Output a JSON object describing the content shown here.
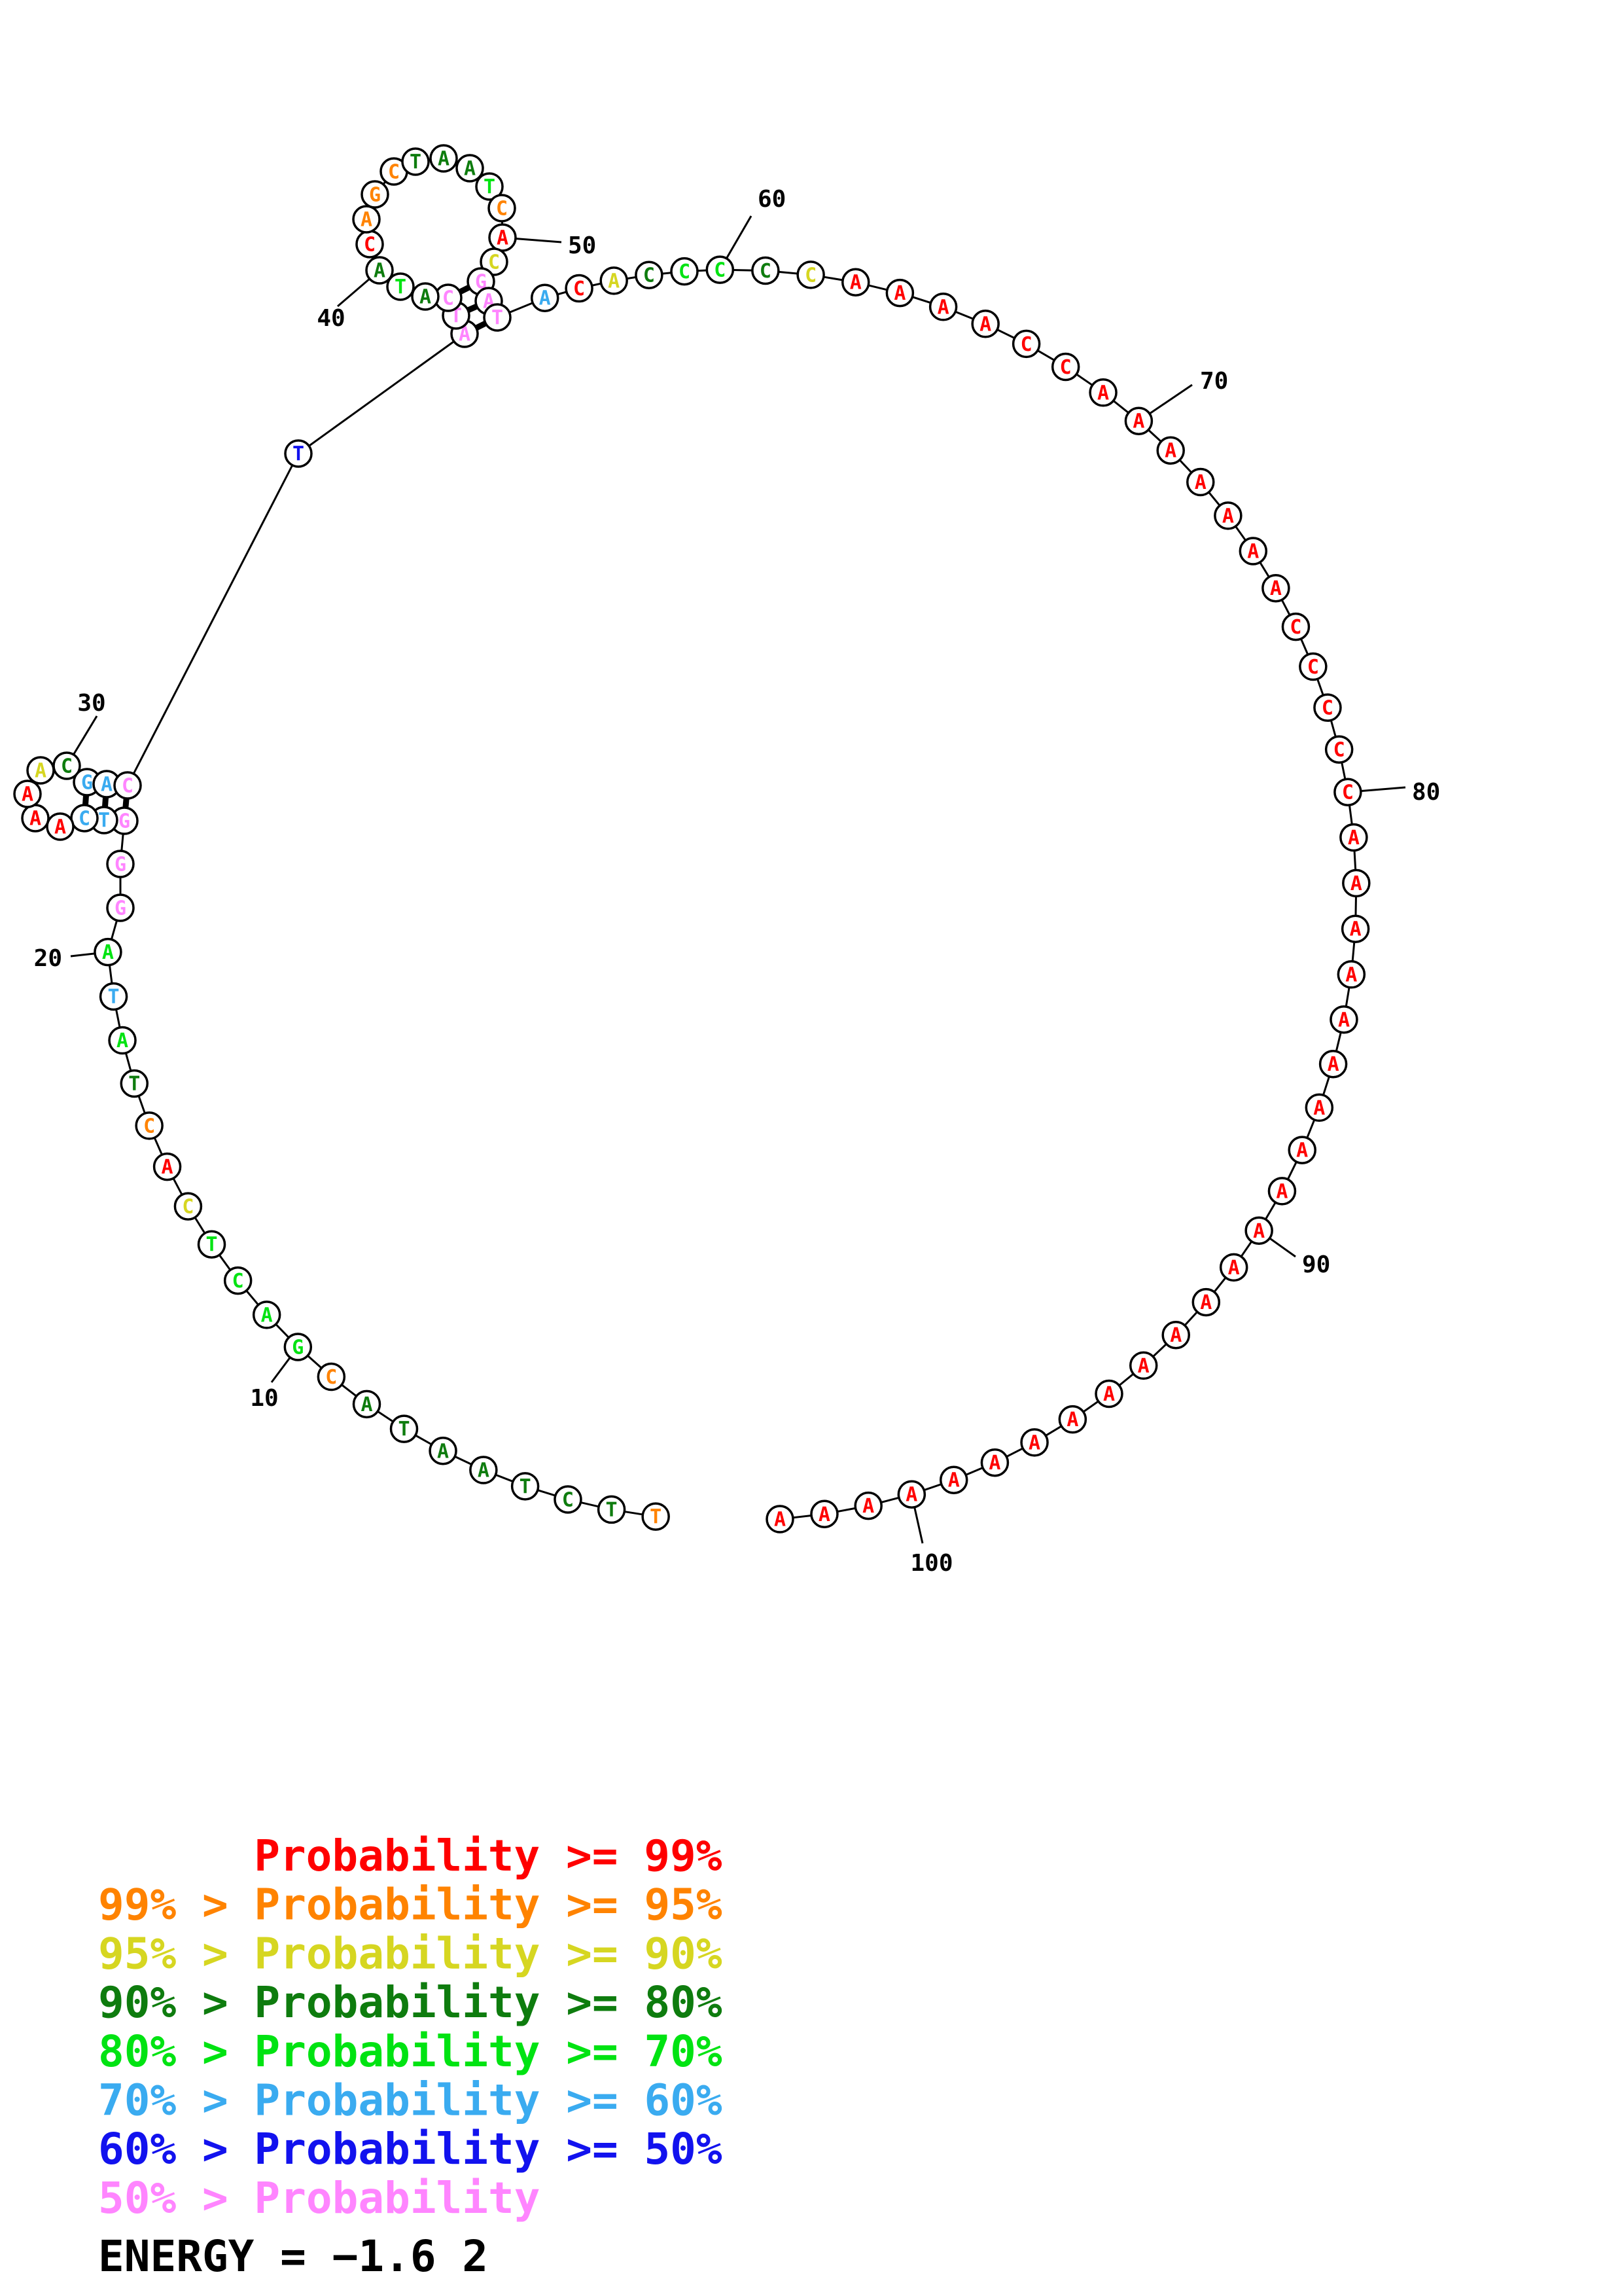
{
  "plot": {
    "type": "nucleic-acid-secondary-structure-probability-plot",
    "sequence_length": 103,
    "bases": "TTCTAATACGACTCACTATAGGGTCAAAACGACTATCATACAGCTAATCACGATACACCCCCAAAACCAAAAAAACCCCCAAAAAAAAAAAAAAAAAAAAAAA",
    "prob_class_codes": "244444442555531245658886611134668788845412224445213888613455431111111111111111111111111111111111111111111",
    "code_to_class": {
      "1": "p_ge99",
      "2": "p95_99",
      "3": "p90_95",
      "4": "p80_90",
      "5": "p70_80",
      "6": "p60_70",
      "7": "p50_60",
      "8": "p_lt50"
    },
    "pairs": [
      [
        23,
        33
      ],
      [
        24,
        32
      ],
      [
        25,
        31
      ],
      [
        35,
        54
      ],
      [
        36,
        53
      ],
      [
        37,
        52
      ]
    ],
    "position_labels": [
      {
        "text": "10",
        "at": 10
      },
      {
        "text": "20",
        "at": 20
      },
      {
        "text": "30",
        "at": 30
      },
      {
        "text": "40",
        "at": 40
      },
      {
        "text": "50",
        "at": 50
      },
      {
        "text": "60",
        "at": 60
      },
      {
        "text": "70",
        "at": 70
      },
      {
        "text": "80",
        "at": 80
      },
      {
        "text": "90",
        "at": 90
      },
      {
        "text": "100",
        "at": 100
      }
    ]
  },
  "colors": {
    "p_ge99": "#ff0000",
    "p95_99": "#ff8300",
    "p90_95": "#d6d621",
    "p80_90": "#0e7c0e",
    "p70_80": "#00e312",
    "p60_70": "#3aabf0",
    "p50_60": "#1212ee",
    "p_lt50": "#ff85ff",
    "ink": "#000000",
    "circle_fill": "#ffffff"
  },
  "legend": {
    "rows": [
      {
        "label": "Probability >= 99%",
        "cls": "p_ge99",
        "indent": true
      },
      {
        "label": "99% > Probability >= 95%",
        "cls": "p95_99",
        "indent": false
      },
      {
        "label": "95% > Probability >= 90%",
        "cls": "p90_95",
        "indent": false
      },
      {
        "label": "90% > Probability >= 80%",
        "cls": "p80_90",
        "indent": false
      },
      {
        "label": "80% > Probability >= 70%",
        "cls": "p70_80",
        "indent": false
      },
      {
        "label": "70% > Probability >= 60%",
        "cls": "p60_70",
        "indent": false
      },
      {
        "label": "60% > Probability >= 50%",
        "cls": "p50_60",
        "indent": false
      },
      {
        "label": "50% > Probability",
        "cls": "p_lt50",
        "indent": false
      }
    ]
  },
  "energy_line": "ENERGY = −1.6  2"
}
